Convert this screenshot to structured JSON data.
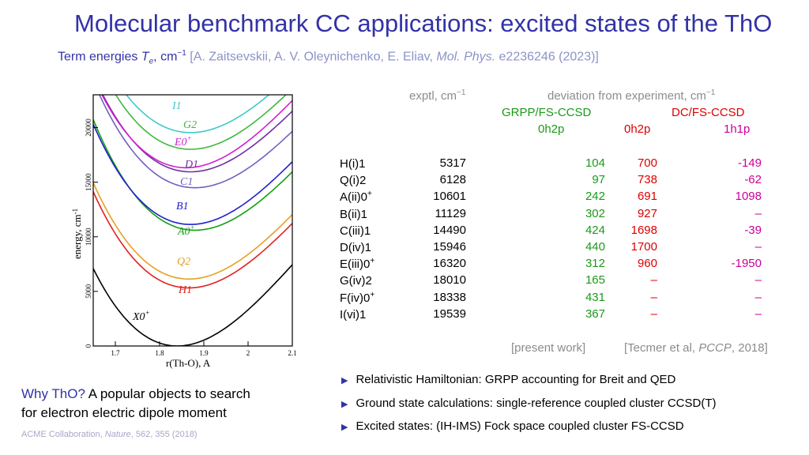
{
  "title": "Molecular benchmark CC applications: excited states of the ThO",
  "subtitle": {
    "prefix": "Term energies",
    "symbol": "T",
    "symbol_sub": "e",
    "unit": ", cm",
    "unit_sup": "−1",
    "ref_authors": "[A. Zaitsevskii, A. V. Oleynichenko, E. Eliav,",
    "ref_journal": "Mol. Phys.",
    "ref_rest": "e2236246 (2023)]"
  },
  "plot": {
    "ylabel": "energy, cm",
    "ylabel_sup": "-1",
    "xlabel": "r(Th-O), A",
    "xticks": [
      "1.7",
      "1.8",
      "1.9",
      "2",
      "2.1"
    ],
    "yticks": [
      "0",
      "5000",
      "10000",
      "15000",
      "20000"
    ],
    "curve_labels": [
      "I1",
      "G2",
      "E0",
      "D1",
      "C1",
      "B1",
      "A0",
      "Q2",
      "H1",
      "X0"
    ],
    "curve_label_sup": "+",
    "colors": {
      "I1": "#40c8c8",
      "G2": "#40b840",
      "E0": "#d020d0",
      "D1": "#7030a0",
      "C1": "#7060c0",
      "B1": "#2020d0",
      "A0": "#10a010",
      "Q2": "#e8a020",
      "H1": "#e02020",
      "X0": "#000000"
    }
  },
  "headers": {
    "exptl": "exptl, cm",
    "exptl_sup": "−1",
    "deviation": "deviation from experiment, cm",
    "deviation_sup": "−1",
    "grpp": "GRPP/FS-CCSD",
    "dc": "DC/FS-CCSD",
    "col_0h2p_a": "0h2p",
    "col_0h2p_b": "0h2p",
    "col_1h1p": "1h1p"
  },
  "rows": [
    {
      "state": "H(i)1",
      "sup": "",
      "exptl": "5317",
      "grpp": "104",
      "dc0": "700",
      "dc1": "-149"
    },
    {
      "state": "Q(i)2",
      "sup": "",
      "exptl": "6128",
      "grpp": "97",
      "dc0": "738",
      "dc1": "-62"
    },
    {
      "state": "A(ii)0",
      "sup": "+",
      "exptl": "10601",
      "grpp": "242",
      "dc0": "691",
      "dc1": "1098"
    },
    {
      "state": "B(ii)1",
      "sup": "",
      "exptl": "11129",
      "grpp": "302",
      "dc0": "927",
      "dc1": "–"
    },
    {
      "state": "C(iii)1",
      "sup": "",
      "exptl": "14490",
      "grpp": "424",
      "dc0": "1698",
      "dc1": "-39"
    },
    {
      "state": "D(iv)1",
      "sup": "",
      "exptl": "15946",
      "grpp": "440",
      "dc0": "1700",
      "dc1": "–"
    },
    {
      "state": "E(iii)0",
      "sup": "+",
      "exptl": "16320",
      "grpp": "312",
      "dc0": "960",
      "dc1": "-1950"
    },
    {
      "state": "G(iv)2",
      "sup": "",
      "exptl": "18010",
      "grpp": "165",
      "dc0": "–",
      "dc1": "–"
    },
    {
      "state": "F(iv)0",
      "sup": "+",
      "exptl": "18338",
      "grpp": "431",
      "dc0": "–",
      "dc1": "–"
    },
    {
      "state": "I(vi)1",
      "sup": "",
      "exptl": "19539",
      "grpp": "367",
      "dc0": "–",
      "dc1": "–"
    }
  ],
  "footnotes": {
    "present": "[present work]",
    "tecmer_pre": "[Tecmer et al,",
    "tecmer_journal": "PCCP",
    "tecmer_post": ", 2018]"
  },
  "bullets": [
    "Relativistic Hamiltonian: GRPP accounting for Breit and QED",
    "Ground state calculations: single-reference coupled cluster CCSD(T)",
    "Excited states: (IH-IMS) Fock space coupled cluster FS-CCSD"
  ],
  "why": {
    "label": "Why ThO?",
    "text1": " A popular objects to search",
    "text2": "for electron electric dipole moment"
  },
  "acme": {
    "pre": "ACME Collaboration,",
    "journal": "Nature",
    "post": ", 562, 355 (2018)"
  }
}
